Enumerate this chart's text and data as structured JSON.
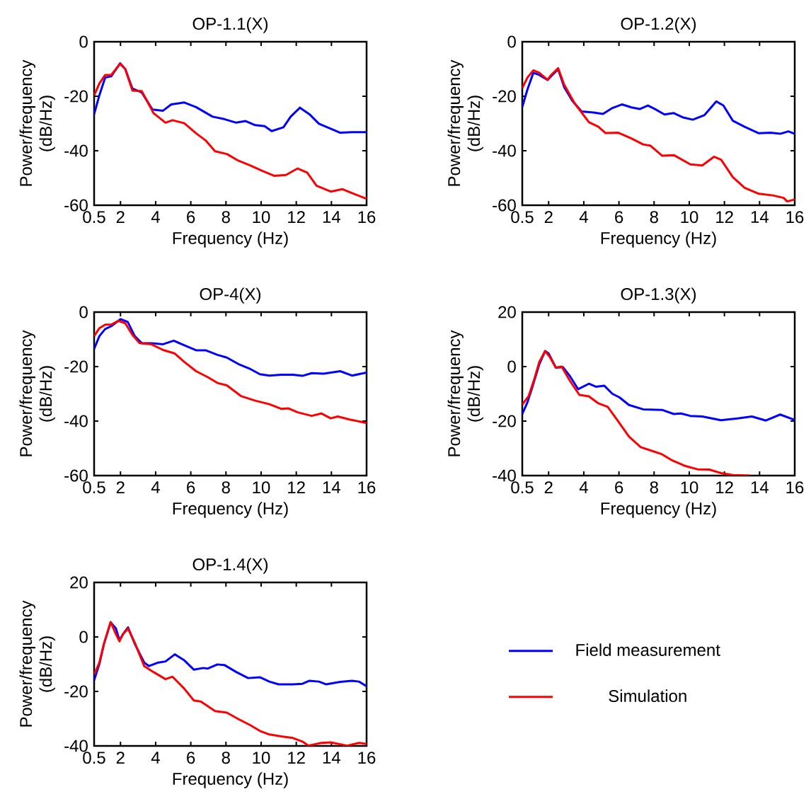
{
  "chart_data": [
    {
      "type": "line",
      "title": "OP-1.1(X)",
      "xlabel": "Frequency (Hz)",
      "ylabel": "Power/frequency (dB/Hz)",
      "xlim": [
        0.5,
        16
      ],
      "xticks": [
        0.5,
        2,
        4,
        6,
        8,
        10,
        12,
        14,
        16
      ],
      "ylim": [
        -60,
        0
      ],
      "yticks": [
        -60,
        -40,
        -20,
        0
      ],
      "series": [
        {
          "color": "#0000ff",
          "x": [
            0.5,
            0.8,
            1.13,
            1.47,
            1.98,
            2.27,
            2.68,
            3.21,
            3.82,
            4.42,
            4.89,
            5.63,
            6.3,
            7.24,
            7.91,
            8.58,
            9.12,
            9.66,
            10.2,
            10.6,
            11.27,
            11.68,
            12.21,
            12.75,
            13.29,
            13.96,
            14.5,
            15.17,
            16
          ],
          "values": [
            -26.6,
            -19.6,
            -13.1,
            -12.7,
            -7.9,
            -10.0,
            -17.2,
            -18.6,
            -24.9,
            -25.3,
            -23.0,
            -22.3,
            -24.0,
            -27.5,
            -28.4,
            -29.7,
            -29.1,
            -30.6,
            -31.0,
            -32.8,
            -31.4,
            -27.5,
            -24.2,
            -26.6,
            -30.1,
            -31.9,
            -33.4,
            -33.2,
            -33.2
          ]
        },
        {
          "color": "#ff0000",
          "x": [
            0.5,
            0.8,
            1.13,
            1.47,
            1.98,
            2.27,
            2.68,
            3.21,
            3.88,
            4.56,
            4.96,
            5.63,
            6.3,
            6.84,
            7.38,
            8.05,
            8.72,
            9.39,
            10.06,
            10.74,
            11.41,
            12.08,
            12.62,
            13.15,
            13.96,
            14.63,
            15.3,
            16
          ],
          "values": [
            -19.7,
            -15.3,
            -12.2,
            -12.2,
            -8.1,
            -10.0,
            -17.9,
            -18.1,
            -26.2,
            -29.7,
            -28.8,
            -29.9,
            -33.6,
            -36.2,
            -40.2,
            -41.2,
            -43.7,
            -45.4,
            -47.4,
            -49.2,
            -48.9,
            -46.5,
            -48.0,
            -52.8,
            -55.0,
            -54.1,
            -55.9,
            -57.6
          ]
        }
      ]
    },
    {
      "type": "line",
      "title": "OP-1.2(X)",
      "xlabel": "Frequency (Hz)",
      "ylabel": "Power/frequency (dB/Hz)",
      "xlim": [
        0.5,
        16
      ],
      "xticks": [
        0.5,
        2,
        4,
        6,
        8,
        10,
        12,
        14,
        16
      ],
      "ylim": [
        -60,
        0
      ],
      "yticks": [
        -60,
        -40,
        -20,
        0
      ],
      "series": [
        {
          "color": "#0000ff",
          "x": [
            0.5,
            0.8,
            1.13,
            1.47,
            1.94,
            2.21,
            2.54,
            2.88,
            3.35,
            3.88,
            4.56,
            5.09,
            5.63,
            6.17,
            6.71,
            7.18,
            7.65,
            8.05,
            8.59,
            9.12,
            9.66,
            10.2,
            10.87,
            11.54,
            11.94,
            12.48,
            13.15,
            13.96,
            14.63,
            15.17,
            15.64,
            16
          ],
          "values": [
            -23.9,
            -17.4,
            -11.4,
            -12.2,
            -14.0,
            -12.2,
            -10.1,
            -16.6,
            -21.7,
            -25.6,
            -26.0,
            -26.5,
            -24.3,
            -23.0,
            -24.1,
            -24.7,
            -23.4,
            -24.7,
            -26.7,
            -26.2,
            -27.8,
            -28.6,
            -26.9,
            -21.9,
            -23.4,
            -29.0,
            -31.2,
            -33.6,
            -33.4,
            -33.8,
            -32.9,
            -33.8
          ]
        },
        {
          "color": "#ff0000",
          "x": [
            0.5,
            0.8,
            1.13,
            1.47,
            1.94,
            2.14,
            2.54,
            2.88,
            3.48,
            4.29,
            4.83,
            5.23,
            5.97,
            6.71,
            7.38,
            7.78,
            8.45,
            9.12,
            10.06,
            10.74,
            11.41,
            11.81,
            12.48,
            13.15,
            13.96,
            14.76,
            15.37,
            15.57,
            16
          ],
          "values": [
            -17.0,
            -13.1,
            -10.5,
            -11.4,
            -14.0,
            -12.2,
            -9.7,
            -15.7,
            -22.6,
            -29.5,
            -31.2,
            -33.5,
            -33.4,
            -35.5,
            -37.7,
            -38.1,
            -41.8,
            -41.6,
            -45.0,
            -45.4,
            -42.2,
            -43.3,
            -49.7,
            -53.6,
            -55.8,
            -56.4,
            -57.3,
            -58.6,
            -57.9
          ]
        }
      ]
    },
    {
      "type": "line",
      "title": "OP-4(X)",
      "xlabel": "Frequency (Hz)",
      "ylabel": "Power/frequency (dB/Hz)",
      "xlim": [
        0.5,
        16
      ],
      "xticks": [
        0.5,
        2,
        4,
        6,
        8,
        10,
        12,
        14,
        16
      ],
      "ylim": [
        -60,
        0
      ],
      "yticks": [
        -60,
        -40,
        -20,
        0
      ],
      "series": [
        {
          "color": "#0000ff",
          "x": [
            0.5,
            0.8,
            1.13,
            1.47,
            2.0,
            2.41,
            2.81,
            3.21,
            3.75,
            4.42,
            5.03,
            5.63,
            6.3,
            6.84,
            7.51,
            8.05,
            8.72,
            9.39,
            9.93,
            10.47,
            11.14,
            11.81,
            12.35,
            12.88,
            13.56,
            14.5,
            15.17,
            16
          ],
          "values": [
            -13.5,
            -8.8,
            -6.2,
            -5.2,
            -2.6,
            -3.6,
            -8.8,
            -11.4,
            -11.4,
            -11.8,
            -10.5,
            -12.2,
            -14.0,
            -14.0,
            -15.7,
            -16.7,
            -19.1,
            -20.9,
            -22.8,
            -23.3,
            -23.0,
            -23.0,
            -23.4,
            -22.4,
            -22.6,
            -21.7,
            -23.3,
            -22.2
          ]
        },
        {
          "color": "#ff0000",
          "x": [
            0.5,
            0.8,
            1.13,
            1.47,
            1.87,
            2.27,
            2.68,
            3.08,
            3.75,
            4.42,
            5.09,
            5.63,
            6.3,
            6.97,
            7.51,
            8.05,
            8.85,
            9.66,
            10.47,
            11.14,
            11.54,
            12.08,
            12.88,
            13.42,
            13.96,
            14.36,
            15.03,
            16
          ],
          "values": [
            -8.8,
            -5.9,
            -4.6,
            -4.6,
            -3.2,
            -4.1,
            -8.4,
            -11.4,
            -11.8,
            -13.9,
            -15.2,
            -18.3,
            -21.7,
            -23.9,
            -26.0,
            -26.9,
            -30.8,
            -32.5,
            -33.8,
            -35.5,
            -35.3,
            -36.8,
            -38.1,
            -37.2,
            -39.0,
            -38.3,
            -39.4,
            -40.7
          ]
        }
      ]
    },
    {
      "type": "line",
      "title": "OP-1.3(X)",
      "xlabel": "Frequency (Hz)",
      "ylabel": "Power/frequency (dB/Hz)",
      "xlim": [
        0.5,
        16
      ],
      "xticks": [
        0.5,
        2,
        4,
        6,
        8,
        10,
        12,
        14,
        16
      ],
      "ylim": [
        -40,
        20
      ],
      "yticks": [
        -40,
        -20,
        0,
        20
      ],
      "series": [
        {
          "color": "#0000ff",
          "x": [
            0.5,
            0.8,
            1.06,
            1.47,
            1.8,
            2.0,
            2.41,
            2.81,
            3.21,
            3.68,
            4.29,
            4.69,
            5.16,
            5.63,
            6.03,
            6.57,
            7.38,
            8.45,
            9.12,
            9.53,
            10.06,
            10.74,
            11.81,
            12.75,
            13.56,
            14.36,
            15.17,
            16
          ],
          "values": [
            -17.4,
            -13.0,
            -7.8,
            0.9,
            5.7,
            4.8,
            -0.4,
            -0.2,
            -3.5,
            -8.3,
            -6.3,
            -7.4,
            -7.0,
            -10.0,
            -11.3,
            -14.1,
            -15.7,
            -15.9,
            -17.4,
            -17.2,
            -18.1,
            -18.3,
            -19.7,
            -19.0,
            -18.3,
            -19.8,
            -17.6,
            -19.6
          ]
        },
        {
          "color": "#ff0000",
          "x": [
            0.5,
            0.86,
            1.2,
            1.47,
            1.8,
            2.07,
            2.41,
            2.74,
            3.21,
            3.75,
            4.29,
            4.83,
            5.36,
            5.9,
            6.57,
            7.24,
            8.05,
            8.45,
            8.99,
            9.79,
            10.47,
            11.14,
            11.81,
            12.48,
            13.42
          ],
          "values": [
            -13.9,
            -10.9,
            -4.3,
            1.7,
            5.7,
            3.5,
            -0.4,
            0.0,
            -5.2,
            -10.4,
            -10.9,
            -13.5,
            -14.8,
            -19.6,
            -25.7,
            -29.6,
            -31.3,
            -32.2,
            -34.3,
            -36.5,
            -37.7,
            -37.8,
            -39.1,
            -39.8,
            -40
          ]
        }
      ]
    },
    {
      "type": "line",
      "title": "OP-1.4(X)",
      "xlabel": "Frequency (Hz)",
      "ylabel": "Power/frequency (dB/Hz)",
      "xlim": [
        0.5,
        16
      ],
      "xticks": [
        0.5,
        2,
        4,
        6,
        8,
        10,
        12,
        14,
        16
      ],
      "ylim": [
        -40,
        20
      ],
      "yticks": [
        -40,
        -20,
        0,
        20
      ],
      "legend": "right",
      "series": [
        {
          "name": "Field measurement",
          "color": "#0000ff",
          "x": [
            0.5,
            0.8,
            1.06,
            1.44,
            1.74,
            1.94,
            2.14,
            2.43,
            2.81,
            3.35,
            3.62,
            4.15,
            4.56,
            5.09,
            5.63,
            6.17,
            6.71,
            6.97,
            7.51,
            7.91,
            8.59,
            9.26,
            9.93,
            10.47,
            11.0,
            11.81,
            12.35,
            12.75,
            13.29,
            13.69,
            14.5,
            15.17,
            15.57,
            16
          ],
          "values": [
            -15.9,
            -9.9,
            -2.5,
            5.3,
            3.1,
            -1.2,
            1.0,
            3.5,
            -2.5,
            -9.4,
            -10.7,
            -9.4,
            -9.0,
            -6.4,
            -8.6,
            -12.0,
            -11.4,
            -11.6,
            -10.1,
            -10.3,
            -12.9,
            -15.1,
            -14.8,
            -16.4,
            -17.4,
            -17.4,
            -17.2,
            -16.1,
            -16.4,
            -17.4,
            -16.5,
            -16.1,
            -16.4,
            -18.1
          ]
        },
        {
          "name": "Simulation",
          "color": "#ff0000",
          "x": [
            0.5,
            0.8,
            1.06,
            1.44,
            1.74,
            1.94,
            2.14,
            2.43,
            2.81,
            3.35,
            3.88,
            4.56,
            4.96,
            5.63,
            6.17,
            6.57,
            7.38,
            8.05,
            8.72,
            9.39,
            9.93,
            10.47,
            11.14,
            11.81,
            12.35,
            12.68,
            13.42,
            13.96,
            14.9,
            15.57,
            16
          ],
          "values": [
            -13.8,
            -9.4,
            -2.5,
            5.5,
            1.0,
            -1.6,
            1.0,
            3.1,
            -2.1,
            -10.7,
            -12.9,
            -15.5,
            -14.6,
            -19.0,
            -23.3,
            -23.7,
            -27.2,
            -27.8,
            -30.2,
            -32.4,
            -34.5,
            -35.8,
            -36.5,
            -37.1,
            -38.4,
            -39.9,
            -38.9,
            -38.7,
            -39.9,
            -38.9,
            -39.3
          ]
        }
      ]
    }
  ]
}
